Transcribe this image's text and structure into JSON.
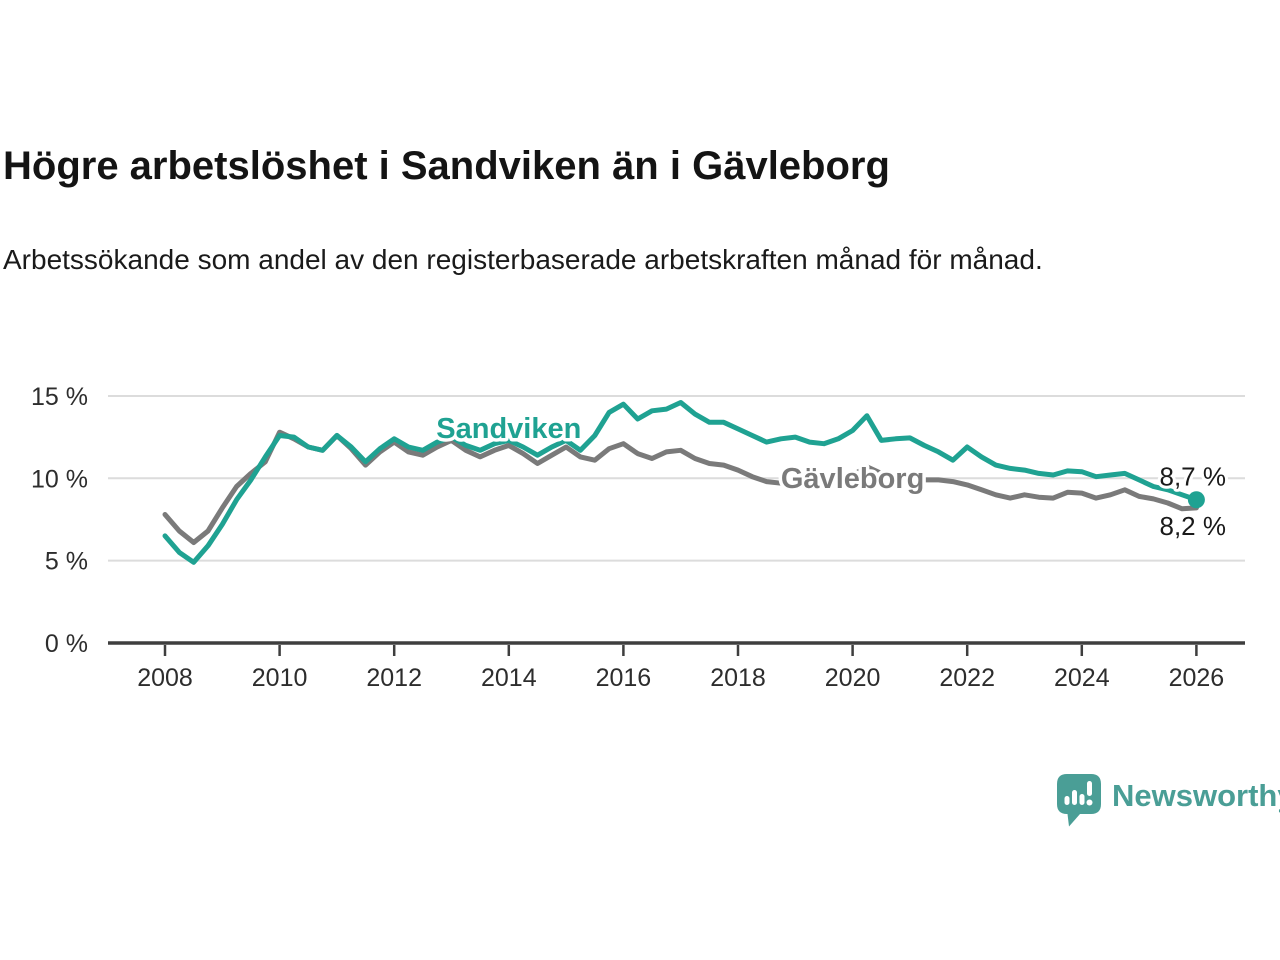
{
  "header": {
    "title": "Högre arbetslöshet i Sandviken än i Gävleborg",
    "subtitle": "Arbetssökande som andel av den registerbaserade arbetskraften månad för månad."
  },
  "footer": {
    "brand_name": "Newsworthy",
    "brand_color": "#4a9e96",
    "logo_icon": "bar-chart-speech-bubble-icon"
  },
  "chart_data": {
    "type": "line",
    "unit": "%",
    "grid": "horizontal",
    "background": "#ffffff",
    "grid_color": "#dcdcdc",
    "axis_color": "#3e3e3e",
    "tick_label_color": "#2d2d2d",
    "annotation_color": "#1a1a1a",
    "x_start": 2008.0,
    "x_step_years": 0.25,
    "xlim": [
      2007.0,
      2026.85
    ],
    "ylim": [
      0,
      15.5
    ],
    "xticks": [
      2008,
      2010,
      2012,
      2014,
      2016,
      2018,
      2020,
      2022,
      2024,
      2026
    ],
    "yticks": [
      0,
      5,
      10,
      15
    ],
    "ytick_labels": [
      "0 %",
      "5 %",
      "10 %",
      "15 %"
    ],
    "series": [
      {
        "id": "sandviken",
        "name": "Sandviken",
        "color": "#1fa292",
        "end_label": "8,7 %",
        "end_dot": true,
        "end_label_dy": -14,
        "label_pos": {
          "year": 2014.0,
          "value": 12.45
        },
        "values": [
          6.5,
          5.5,
          4.9,
          5.9,
          7.2,
          8.7,
          9.9,
          11.3,
          12.6,
          12.5,
          11.9,
          11.7,
          12.6,
          11.9,
          11.0,
          11.8,
          12.4,
          11.9,
          11.7,
          12.2,
          12.5,
          12.0,
          11.7,
          12.1,
          12.3,
          11.9,
          11.4,
          11.9,
          12.3,
          11.7,
          12.6,
          14.0,
          14.5,
          13.6,
          14.1,
          14.2,
          14.6,
          13.9,
          13.4,
          13.4,
          13.0,
          12.6,
          12.2,
          12.4,
          12.5,
          12.2,
          12.1,
          12.4,
          12.9,
          13.8,
          12.3,
          12.4,
          12.45,
          12.0,
          11.6,
          11.1,
          11.9,
          11.3,
          10.8,
          10.6,
          10.5,
          10.3,
          10.2,
          10.45,
          10.4,
          10.1,
          10.2,
          10.3,
          9.9,
          9.5,
          9.3,
          9.0,
          8.7
        ]
      },
      {
        "id": "gavleborg",
        "name": "Gävleborg",
        "color": "#7a7a7a",
        "end_label": "8,2 %",
        "end_dot": false,
        "end_label_dy": 27,
        "label_pos": {
          "year": 2020.0,
          "value": 9.4
        },
        "values": [
          7.8,
          6.8,
          6.1,
          6.8,
          8.2,
          9.5,
          10.3,
          11.0,
          12.8,
          12.4,
          11.9,
          11.7,
          12.6,
          11.8,
          10.8,
          11.6,
          12.2,
          11.6,
          11.4,
          11.9,
          12.3,
          11.7,
          11.3,
          11.7,
          12.0,
          11.5,
          10.9,
          11.4,
          11.9,
          11.3,
          11.1,
          11.8,
          12.1,
          11.5,
          11.2,
          11.6,
          11.7,
          11.2,
          10.9,
          10.8,
          10.5,
          10.1,
          9.8,
          9.7,
          9.9,
          9.8,
          9.7,
          10.0,
          10.2,
          10.7,
          10.3,
          10.1,
          10.1,
          9.9,
          9.9,
          9.8,
          9.6,
          9.3,
          9.0,
          8.8,
          9.0,
          8.85,
          8.8,
          9.15,
          9.1,
          8.8,
          9.0,
          9.3,
          8.9,
          8.75,
          8.5,
          8.15,
          8.2
        ]
      }
    ]
  }
}
